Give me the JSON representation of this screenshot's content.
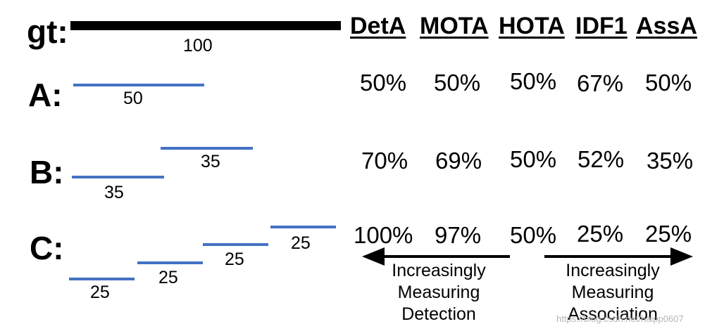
{
  "rows": {
    "gt": "gt:",
    "A": "A:",
    "B": "B:",
    "C": "C:"
  },
  "lengths": {
    "gt": "100",
    "A": "50",
    "B1": "35",
    "B2": "35",
    "C1": "25",
    "C2": "25",
    "C3": "25",
    "C4": "25"
  },
  "headers": [
    "DetA",
    "MOTA",
    "HOTA",
    "IDF1",
    "AssA"
  ],
  "values": {
    "A": [
      "50%",
      "50%",
      "50%",
      "67%",
      "50%"
    ],
    "B": [
      "70%",
      "69%",
      "50%",
      "52%",
      "35%"
    ],
    "C": [
      "100%",
      "97%",
      "50%",
      "25%",
      "25%"
    ]
  },
  "annotations": {
    "left": [
      "Increasingly",
      "Measuring",
      "Detection"
    ],
    "right": [
      "Increasingly",
      "Measuring",
      "Association"
    ]
  },
  "watermark": "https://blog.csdn.net/haipp0607",
  "colors": {
    "segment": "#4472c4",
    "gt_bar": "#000000"
  }
}
